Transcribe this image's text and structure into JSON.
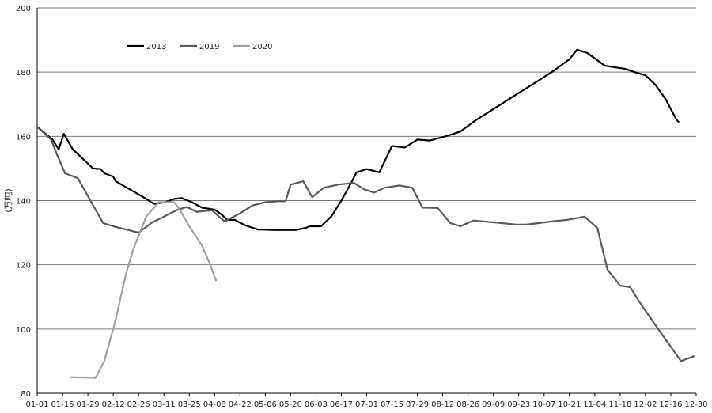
{
  "chart_data": {
    "type": "line",
    "title": "",
    "xlabel": "",
    "ylabel": "(万吨)",
    "ylim": [
      80,
      200
    ],
    "yticks": [
      80,
      100,
      120,
      140,
      160,
      180,
      200
    ],
    "grid": "horizontal",
    "legend_position": "top-left",
    "x_tick_labels": [
      "01-01",
      "01-15",
      "01-29",
      "02-12",
      "02-26",
      "03-11",
      "03-25",
      "04-08",
      "04-22",
      "05-06",
      "05-20",
      "06-03",
      "06-17",
      "07-01",
      "07-15",
      "07-29",
      "08-12",
      "08-26",
      "09-09",
      "09-23",
      "10-07",
      "10-21",
      "11-04",
      "11-18",
      "12-02",
      "12-16",
      "12-30"
    ],
    "series": [
      {
        "name": "2013",
        "color": "#000000",
        "points": [
          [
            0,
            163
          ],
          [
            0.6,
            159
          ],
          [
            0.85,
            156
          ],
          [
            1.05,
            160.8
          ],
          [
            1.4,
            156
          ],
          [
            1.8,
            153
          ],
          [
            2.2,
            150
          ],
          [
            2.5,
            149.8
          ],
          [
            2.65,
            148.5
          ],
          [
            3,
            147.5
          ],
          [
            3.1,
            146
          ],
          [
            4.2,
            141
          ],
          [
            4.6,
            139
          ],
          [
            5.05,
            139.5
          ],
          [
            5.4,
            140.5
          ],
          [
            5.7,
            140.8
          ],
          [
            6.1,
            139.5
          ],
          [
            6.5,
            137.8
          ],
          [
            7,
            137.2
          ],
          [
            7.3,
            135.5
          ],
          [
            7.5,
            134
          ],
          [
            7.8,
            134
          ],
          [
            8.2,
            132.3
          ],
          [
            8.7,
            131
          ],
          [
            9.4,
            130.8
          ],
          [
            10.2,
            130.8
          ],
          [
            10.6,
            131.5
          ],
          [
            10.75,
            132
          ],
          [
            11.2,
            132
          ],
          [
            11.6,
            135
          ],
          [
            12,
            140
          ],
          [
            12.35,
            145
          ],
          [
            12.6,
            148.8
          ],
          [
            13,
            149.8
          ],
          [
            13.5,
            148.8
          ],
          [
            14,
            157
          ],
          [
            14.5,
            156.5
          ],
          [
            15,
            159
          ],
          [
            15.5,
            158.7
          ],
          [
            16.2,
            160.2
          ],
          [
            16.7,
            161.5
          ],
          [
            17.3,
            165
          ],
          [
            18,
            168.5
          ],
          [
            18.8,
            172.5
          ],
          [
            19.5,
            176
          ],
          [
            20.3,
            180
          ],
          [
            21,
            184
          ],
          [
            21.3,
            187
          ],
          [
            21.7,
            186
          ],
          [
            22.4,
            182
          ],
          [
            22.8,
            181.5
          ],
          [
            23.2,
            181
          ],
          [
            23.5,
            180.2
          ],
          [
            24,
            179
          ],
          [
            24.4,
            176
          ],
          [
            24.8,
            171.5
          ],
          [
            25.2,
            165.5
          ],
          [
            25.3,
            164.5
          ]
        ]
      },
      {
        "name": "2019",
        "color": "#595959",
        "points": [
          [
            0,
            163
          ],
          [
            0.55,
            159
          ],
          [
            0.8,
            154
          ],
          [
            1.1,
            148.5
          ],
          [
            1.6,
            147
          ],
          [
            2.1,
            140
          ],
          [
            2.6,
            133
          ],
          [
            3,
            132
          ],
          [
            3.6,
            130.8
          ],
          [
            4,
            130
          ],
          [
            4.5,
            133
          ],
          [
            5,
            135
          ],
          [
            5.5,
            137
          ],
          [
            5.9,
            138
          ],
          [
            6.3,
            136.5
          ],
          [
            6.9,
            137
          ],
          [
            7.2,
            134.8
          ],
          [
            7.4,
            133.5
          ],
          [
            8,
            136
          ],
          [
            8.5,
            138.5
          ],
          [
            9,
            139.5
          ],
          [
            9.5,
            139.8
          ],
          [
            9.8,
            139.8
          ],
          [
            10,
            145
          ],
          [
            10.5,
            146
          ],
          [
            10.85,
            141
          ],
          [
            11.3,
            144
          ],
          [
            11.9,
            145
          ],
          [
            12.5,
            145.5
          ],
          [
            12.9,
            143.5
          ],
          [
            13.3,
            142.5
          ],
          [
            13.7,
            144
          ],
          [
            14.3,
            144.7
          ],
          [
            14.8,
            144
          ],
          [
            15.2,
            137.8
          ],
          [
            15.8,
            137.7
          ],
          [
            16.3,
            133
          ],
          [
            16.7,
            132
          ],
          [
            17.2,
            133.8
          ],
          [
            18.3,
            133
          ],
          [
            18.9,
            132.5
          ],
          [
            19.3,
            132.5
          ],
          [
            20.3,
            133.5
          ],
          [
            20.9,
            134
          ],
          [
            21.6,
            135
          ],
          [
            22.1,
            131.5
          ],
          [
            22.5,
            118.5
          ],
          [
            23,
            113.5
          ],
          [
            23.4,
            113
          ],
          [
            23.8,
            108
          ],
          [
            24.5,
            100
          ],
          [
            25.4,
            90
          ],
          [
            25.9,
            91.5
          ]
        ]
      },
      {
        "name": "2020",
        "color": "#a0a0a0",
        "points": [
          [
            1.3,
            85
          ],
          [
            2.3,
            84.8
          ],
          [
            2.65,
            90
          ],
          [
            3.1,
            103
          ],
          [
            3.5,
            117
          ],
          [
            3.8,
            125
          ],
          [
            4.3,
            135
          ],
          [
            4.8,
            139.5
          ],
          [
            5.4,
            139.5
          ],
          [
            5.6,
            137.5
          ],
          [
            6,
            132
          ],
          [
            6.5,
            126
          ],
          [
            6.8,
            120.5
          ],
          [
            7.05,
            115.2
          ]
        ]
      }
    ]
  }
}
